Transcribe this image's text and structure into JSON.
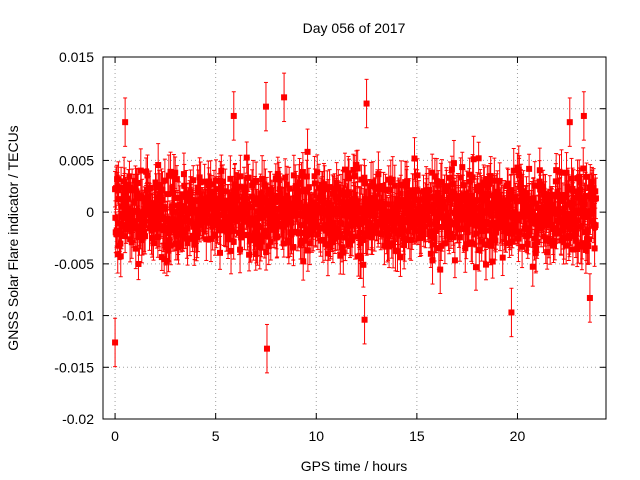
{
  "chart_data": {
    "type": "scatter",
    "title": "Day 056 of 2017",
    "xlabel": "GPS time / hours",
    "ylabel": "GNSS Solar Flare indicator / TECUs",
    "xlim": [
      -0.6,
      24.4
    ],
    "ylim": [
      -0.02,
      0.015
    ],
    "xticks": [
      0,
      5,
      10,
      15,
      20
    ],
    "xtick_labels": [
      "0",
      "5",
      "10",
      "15",
      "20"
    ],
    "yticks": [
      -0.02,
      -0.015,
      -0.01,
      -0.005,
      0,
      0.005,
      0.01,
      0.015
    ],
    "ytick_labels": [
      "-0.02",
      "-0.015",
      "-0.01",
      "-0.005",
      "0",
      "0.005",
      "0.01",
      "0.015"
    ],
    "grid": true,
    "series_color": "#ff0000",
    "series": [
      {
        "name": "solar flare indicator",
        "x_range": [
          0,
          23.9
        ],
        "typical_abs_max": 0.0065,
        "typical_error": 0.0018,
        "outliers": [
          {
            "x": 0.0,
            "y": -0.0126
          },
          {
            "x": 7.55,
            "y": -0.0132
          },
          {
            "x": 8.4,
            "y": 0.0111
          },
          {
            "x": 7.5,
            "y": 0.0102
          },
          {
            "x": 12.5,
            "y": 0.0105
          },
          {
            "x": 12.4,
            "y": -0.0104
          },
          {
            "x": 19.7,
            "y": -0.0097
          },
          {
            "x": 23.3,
            "y": 0.0093
          },
          {
            "x": 0.5,
            "y": 0.0087
          },
          {
            "x": 5.9,
            "y": 0.0093
          },
          {
            "x": 23.6,
            "y": -0.0083
          },
          {
            "x": 22.6,
            "y": 0.0087
          }
        ]
      }
    ]
  }
}
